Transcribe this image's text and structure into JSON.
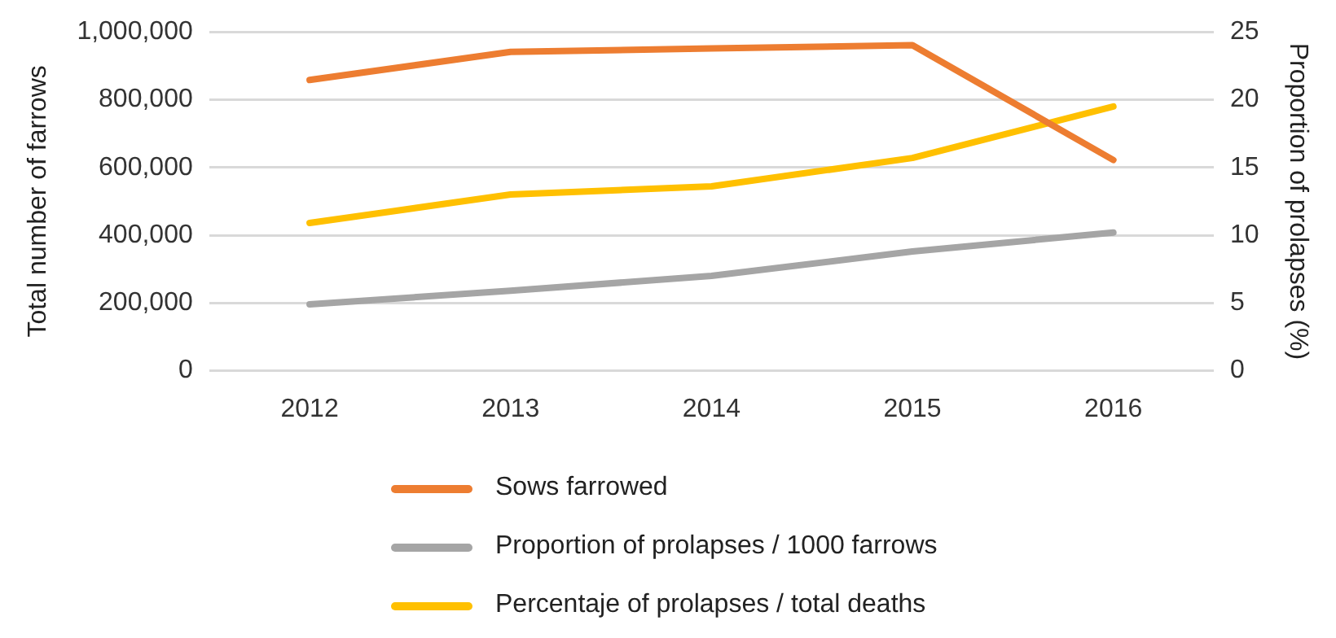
{
  "chart_data": {
    "type": "line",
    "ylabel": "Total number of farrows",
    "y2label": "Proportion of prolapses (%)",
    "categories": [
      "2012",
      "2013",
      "2014",
      "2015",
      "2016"
    ],
    "series": [
      {
        "name": "Sows farrowed",
        "color": "#ed7d31",
        "values": [
          858000,
          941000,
          951000,
          961000,
          622000
        ]
      },
      {
        "name": "Proportion of prolapses / 1000 farrows",
        "color": "#a5a5a5",
        "axis": "y2",
        "values": [
          4.9,
          5.9,
          7.0,
          8.8,
          10.2
        ]
      },
      {
        "name": "Percentaje of prolapses / total deaths",
        "color": "#ffc000",
        "axis": "y2",
        "values": [
          10.9,
          13.0,
          13.6,
          15.7,
          19.5
        ]
      }
    ],
    "ylim": [
      0,
      1000000
    ],
    "yticks": [
      0,
      {
        "value": 200000,
        "label": "200,000"
      },
      {
        "value": 400000,
        "label": "400,000"
      },
      {
        "value": 600000,
        "label": "600,000"
      },
      {
        "value": 800000,
        "label": "800,000"
      },
      {
        "value": 1000000,
        "label": "1,000,000"
      }
    ],
    "y2lim": [
      0,
      25
    ],
    "y2ticks": [
      0,
      5,
      10,
      15,
      20,
      25
    ],
    "grid": "y",
    "legend": "bottom",
    "marker": "none",
    "line_style": "solid"
  }
}
